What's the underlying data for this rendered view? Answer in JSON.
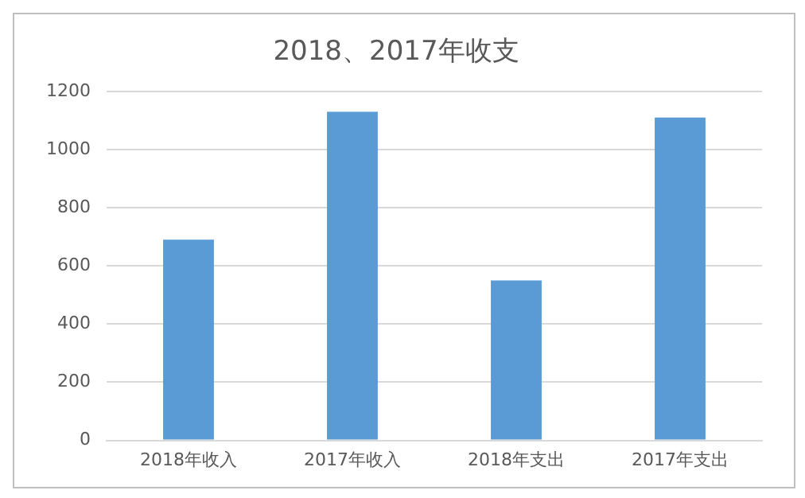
{
  "chart_data": {
    "type": "bar",
    "title": "2018、2017年收支",
    "categories": [
      "2018年收入",
      "2017年收入",
      "2018年支出",
      "2017年支出"
    ],
    "values": [
      690,
      1130,
      550,
      1110
    ],
    "color": "#5b9bd5",
    "ylim": [
      0,
      1200
    ],
    "yticks": [
      0,
      200,
      400,
      600,
      800,
      1000,
      1200
    ],
    "grid": "y"
  }
}
